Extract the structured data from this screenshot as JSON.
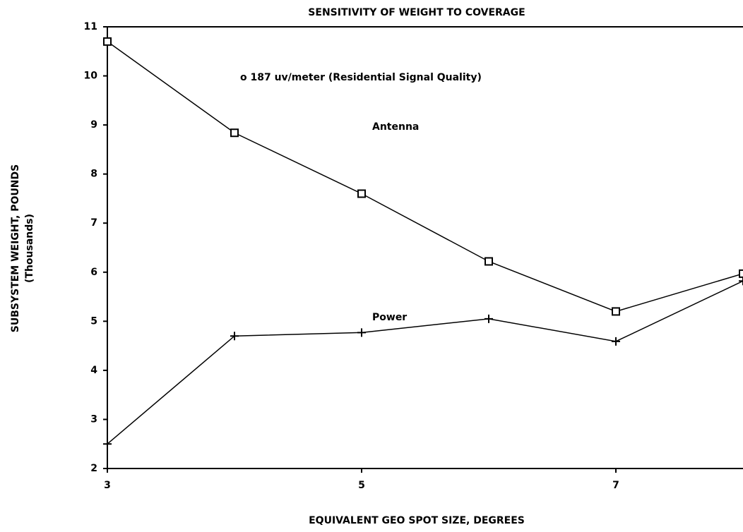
{
  "chart_data": {
    "type": "line",
    "title": "SENSITIVITY OF WEIGHT TO COVERAGE",
    "x_label": "EQUIVALENT GEO SPOT SIZE, DEGREES",
    "y_label": "SUBSYSTEM WEIGHT, POUNDS",
    "y_sublabel": "(Thousands)",
    "annotation": "o 187 uv/meter (Residential Signal Quality)",
    "x": [
      3,
      4,
      5,
      6,
      7,
      8
    ],
    "series": [
      {
        "name": "Antenna",
        "color": "#000000",
        "marker": "square",
        "values": [
          10.7,
          8.84,
          7.6,
          6.22,
          5.2,
          5.97
        ]
      },
      {
        "name": "Power",
        "color": "#000000",
        "marker": "plus",
        "values": [
          2.5,
          4.7,
          4.77,
          5.05,
          4.59,
          5.82
        ]
      }
    ],
    "xlim": [
      3,
      8
    ],
    "xticks": [
      3,
      5,
      7
    ],
    "ylim": [
      2,
      11
    ],
    "yticks": [
      2,
      3,
      4,
      5,
      6,
      7,
      8,
      9,
      10,
      11
    ]
  }
}
